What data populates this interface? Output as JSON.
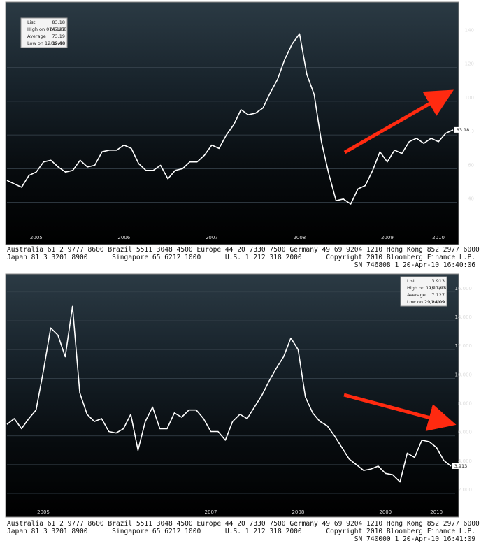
{
  "chart_data": [
    {
      "type": "line",
      "categories": [
        null,
        null,
        null,
        null,
        "2005",
        null,
        null,
        null,
        null,
        null,
        null,
        null,
        null,
        null,
        null,
        null,
        "2006",
        null,
        null,
        null,
        null,
        null,
        null,
        null,
        null,
        null,
        null,
        null,
        "2007",
        null,
        null,
        null,
        null,
        null,
        null,
        null,
        null,
        null,
        null,
        null,
        "2008",
        null,
        null,
        null,
        null,
        null,
        null,
        null,
        null,
        null,
        null,
        null,
        "2009",
        null,
        null,
        null,
        null,
        null,
        null,
        "2010",
        null,
        null
      ],
      "series": [
        {
          "color": "#ffffff",
          "values": [
            53,
            51,
            49,
            56,
            58,
            64,
            65,
            61,
            58,
            59,
            65,
            61,
            62,
            70,
            71,
            71,
            74,
            72,
            63,
            59,
            59,
            62,
            54,
            59,
            60,
            64,
            64,
            68,
            74,
            72,
            80,
            86,
            95,
            92,
            93,
            96,
            105,
            113,
            125,
            134,
            140,
            116,
            104,
            76,
            57,
            41,
            42,
            39,
            48,
            50,
            59,
            70,
            64,
            71,
            69,
            76,
            78,
            75,
            78,
            76,
            81,
            83
          ]
        }
      ],
      "ylim": [
        22,
        158
      ],
      "yticks": [
        40,
        60,
        80,
        100,
        120,
        140
      ],
      "grid": true,
      "last_label": "83.18",
      "legend_position": "upper left",
      "legend_rows": [
        [
          "List",
          "83.18"
        ],
        [
          "High on 07/11/08",
          "147.27"
        ],
        [
          "Average",
          "73.19"
        ],
        [
          "Low on 12/19/08",
          "32.40"
        ]
      ],
      "footer": [
        "Australia 61 2 9777 8600 Brazil 5511 3048 4500 Europe 44 20 7330 7500 Germany 49 69 9204 1210 Hong Kong 852 2977 6000",
        "Japan 81 3 3201 8900      Singapore 65 6212 1000      U.S. 1 212 318 2000      Copyright 2010 Bloomberg Finance L.P.",
        "SN 746808 1 20-Apr-10 16:40:06"
      ]
    },
    {
      "type": "line",
      "categories": [
        null,
        null,
        null,
        null,
        null,
        "2005",
        null,
        null,
        null,
        null,
        null,
        null,
        null,
        null,
        null,
        null,
        null,
        null,
        null,
        null,
        null,
        null,
        null,
        null,
        null,
        null,
        null,
        null,
        "2007",
        null,
        null,
        null,
        null,
        null,
        null,
        null,
        null,
        null,
        null,
        null,
        "2008",
        null,
        null,
        null,
        null,
        null,
        null,
        null,
        null,
        null,
        null,
        null,
        "2009",
        null,
        null,
        null,
        null,
        null,
        null,
        "2010",
        null,
        null
      ],
      "series": [
        {
          "color": "#ffffff",
          "values": [
            6.8,
            7.2,
            6.5,
            7.2,
            7.8,
            10.5,
            13.5,
            13.0,
            11.5,
            15.0,
            9.0,
            7.5,
            7.0,
            7.2,
            6.3,
            6.2,
            6.5,
            7.5,
            5.0,
            7.0,
            8.0,
            6.5,
            6.5,
            7.6,
            7.3,
            7.8,
            7.8,
            7.2,
            6.3,
            6.3,
            5.7,
            7.0,
            7.5,
            7.2,
            8.0,
            8.8,
            9.8,
            10.7,
            11.5,
            12.8,
            12.0,
            8.7,
            7.6,
            7.0,
            6.7,
            6.0,
            5.2,
            4.4,
            4.0,
            3.6,
            3.7,
            3.9,
            3.4,
            3.3,
            2.8,
            4.8,
            4.5,
            5.7,
            5.6,
            5.2,
            4.3,
            3.9
          ]
        }
      ],
      "ylim": [
        1.13,
        17.06
      ],
      "yticks": [
        {
          "value": 2,
          "label": "2.000"
        },
        {
          "value": 4,
          "label": "4.000"
        },
        {
          "value": 6,
          "label": "6.000"
        },
        {
          "value": 8,
          "label": "8.000"
        },
        {
          "value": 10,
          "label": "10.000"
        },
        {
          "value": 12,
          "label": "12.000"
        },
        {
          "value": 14,
          "label": "14.000"
        },
        {
          "value": 16,
          "label": "16.000"
        }
      ],
      "grid": true,
      "last_label": "3.913",
      "legend_position": "upper right",
      "legend_rows": [
        [
          "List",
          "3.913"
        ],
        [
          "High on 12/13/05",
          "15.780"
        ],
        [
          "Average",
          "7.127"
        ],
        [
          "Low on 29/04/09",
          "2.409"
        ]
      ],
      "footer": [
        "Australia 61 2 9777 8600 Brazil 5511 3048 4500 Europe 44 20 7330 7500 Germany 49 69 9204 1210 Hong Kong 852 2977 6000",
        "Japan 81 3 3201 8900      Singapore 65 6212 1000      U.S. 1 212 318 2000      Copyright 2010 Bloomberg Finance L.P.",
        "SN 740000 1 20-Apr-10 16:41:09"
      ]
    }
  ]
}
